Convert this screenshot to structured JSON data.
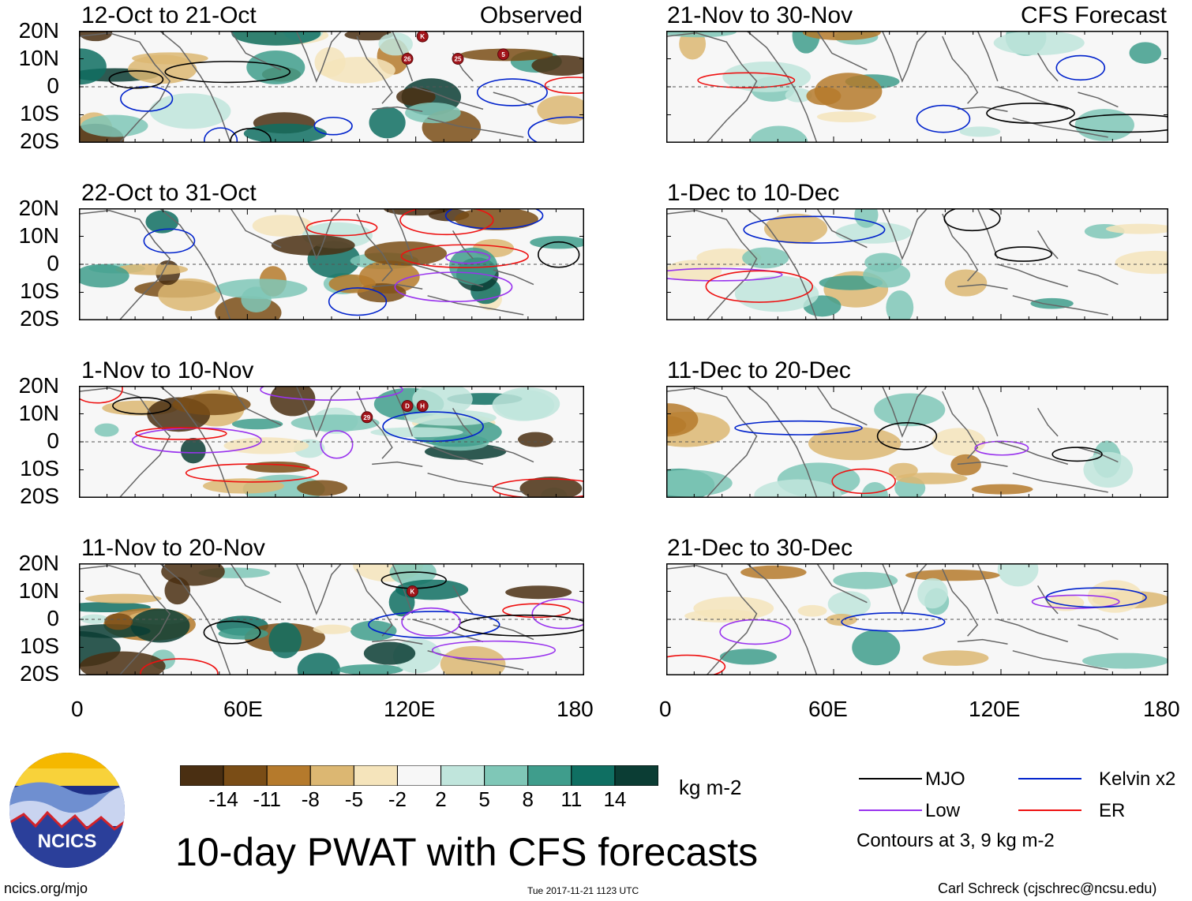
{
  "left_column": {
    "tag": "Observed",
    "panels": [
      {
        "title": "12-Oct to 21-Oct",
        "storms": [
          "K",
          "26",
          "25",
          "5"
        ]
      },
      {
        "title": "22-Oct to 31-Oct",
        "storms": []
      },
      {
        "title": "1-Nov to 10-Nov",
        "storms": [
          "29",
          "D",
          "H"
        ]
      },
      {
        "title": "11-Nov to 20-Nov",
        "storms": [
          "K"
        ]
      }
    ]
  },
  "right_column": {
    "tag": "CFS Forecast",
    "panels": [
      {
        "title": "21-Nov to 30-Nov"
      },
      {
        "title": "1-Dec to 10-Dec"
      },
      {
        "title": "11-Dec to 20-Dec"
      },
      {
        "title": "21-Dec to 30-Dec"
      }
    ]
  },
  "y_ticks": [
    "20N",
    "10N",
    "0",
    "10S",
    "20S"
  ],
  "x_ticks": [
    "0",
    "60E",
    "120E",
    "180"
  ],
  "colorbar": {
    "labels": [
      "-14",
      "-11",
      "-8",
      "-5",
      "-2",
      "2",
      "5",
      "8",
      "11",
      "14"
    ],
    "colors": [
      "#4a2f12",
      "#7a4d16",
      "#b57a2c",
      "#dcb772",
      "#f5e4bb",
      "#f7f7f7",
      "#c0e5dc",
      "#7fc7b7",
      "#3f9d8c",
      "#0f6f62",
      "#0b3d34"
    ],
    "unit": "kg m-2"
  },
  "title": "10-day PWAT with CFS forecasts",
  "legend": {
    "items": [
      {
        "label": "MJO",
        "color": "#000000"
      },
      {
        "label": "Kelvin x2",
        "color": "#0022cc"
      },
      {
        "label": "Low",
        "color": "#9933ee"
      },
      {
        "label": "ER",
        "color": "#ee1111"
      }
    ],
    "note": "Contours at 3, 9 kg m-2"
  },
  "logo": {
    "text": "NCICS"
  },
  "footer": {
    "left": "ncics.org/mjo",
    "center": "Tue 2017-11-21 1123 UTC",
    "right": "Carl Schreck (cjschrec@ncsu.edu)"
  }
}
